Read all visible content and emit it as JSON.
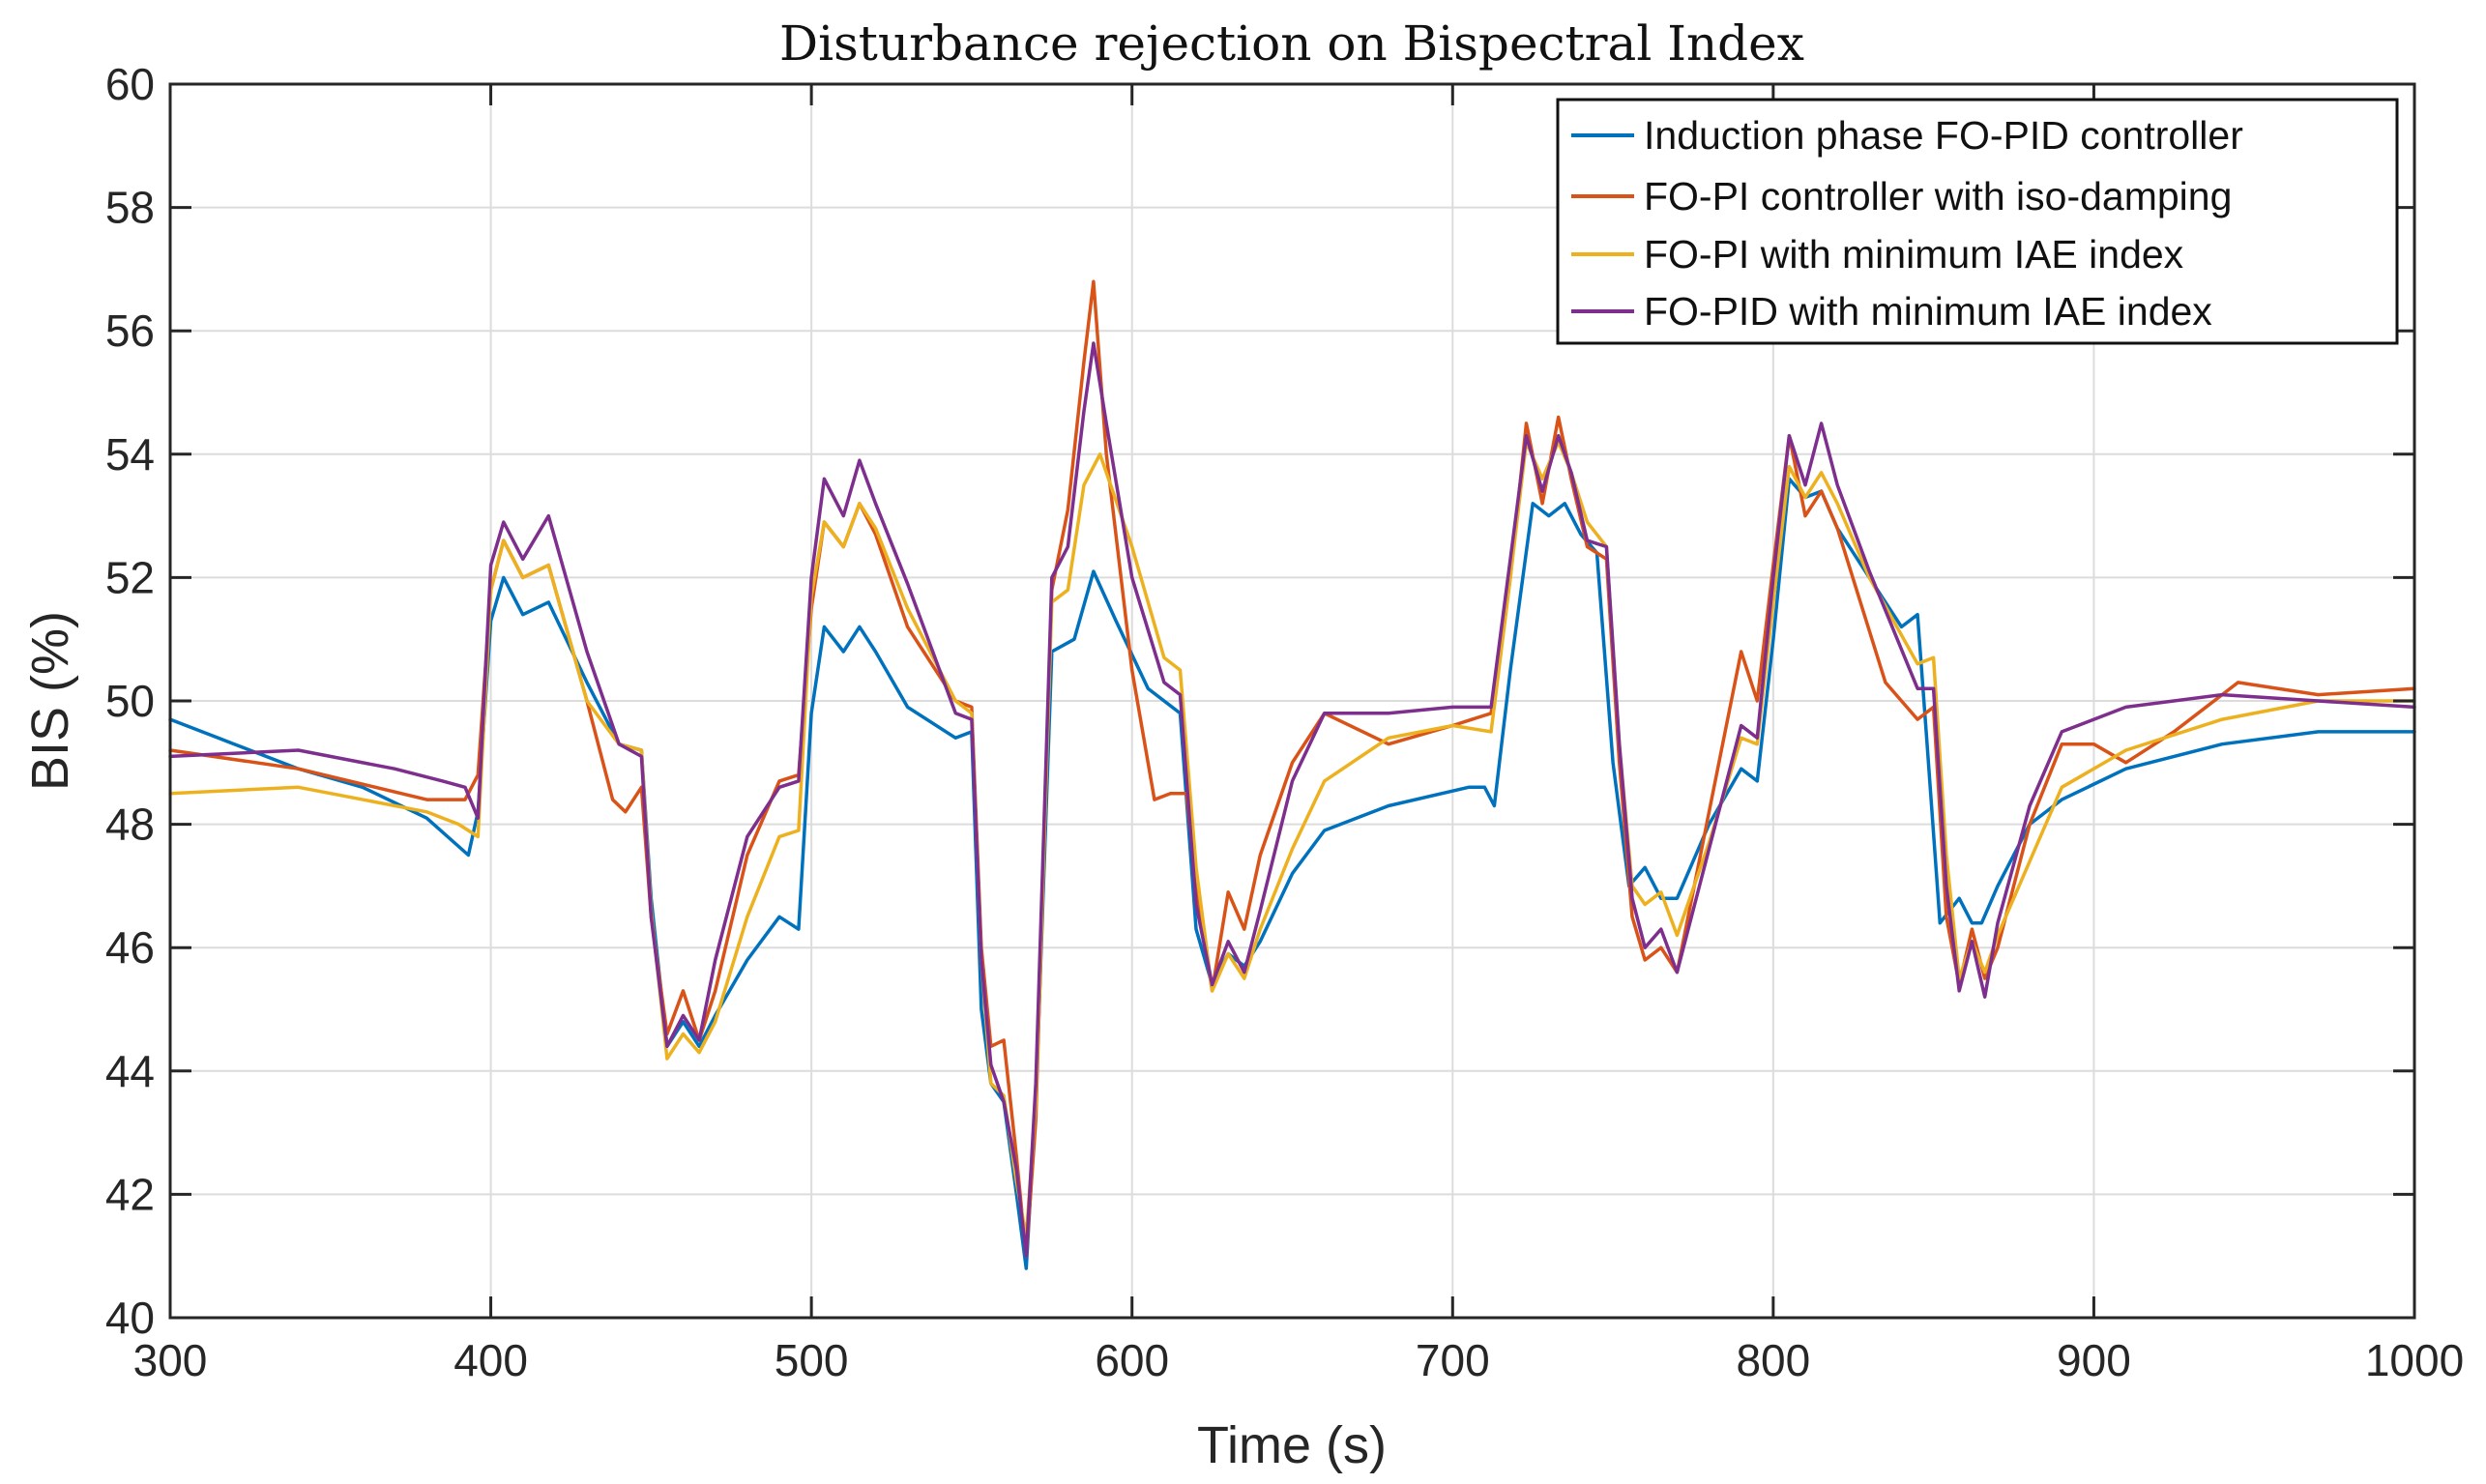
{
  "chart_data": {
    "type": "line",
    "title": "Disturbance rejection on Bispectral Index",
    "xlabel": "Time (s)",
    "ylabel": "BIS (%)",
    "xlim": [
      300,
      1000
    ],
    "ylim": [
      40,
      60
    ],
    "xticks": [
      300,
      400,
      500,
      600,
      700,
      800,
      900,
      1000
    ],
    "yticks": [
      40,
      42,
      44,
      46,
      48,
      50,
      52,
      54,
      56,
      58,
      60
    ],
    "grid": true,
    "legend_position": "top-right",
    "series": [
      {
        "name": "Induction phase FO-PID controller",
        "color": "#0072BD",
        "x": [
          300,
          320,
          340,
          360,
          380,
          393,
          396,
          400,
          404,
          410,
          418,
          430,
          440,
          447,
          450,
          455,
          460,
          465,
          470,
          480,
          490,
          496,
          500,
          504,
          510,
          515,
          520,
          530,
          545,
          550,
          553,
          556,
          560,
          564,
          567,
          570,
          575,
          582,
          588,
          595,
          605,
          615,
          620,
          625,
          630,
          635,
          640,
          650,
          660,
          680,
          705,
          710,
          713,
          718,
          725,
          730,
          735,
          740,
          745,
          750,
          755,
          760,
          765,
          770,
          780,
          790,
          795,
          800,
          805,
          810,
          815,
          820,
          830,
          840,
          845,
          848,
          852,
          858,
          862,
          865,
          870,
          880,
          890,
          910,
          940,
          970,
          1000
        ],
        "y": [
          49.7,
          49.3,
          48.9,
          48.6,
          48.1,
          47.5,
          48.2,
          51.3,
          52.0,
          51.4,
          51.6,
          50.3,
          49.3,
          49.2,
          46.8,
          44.4,
          44.8,
          44.4,
          44.9,
          45.8,
          46.5,
          46.3,
          49.8,
          51.2,
          50.8,
          51.2,
          50.8,
          49.9,
          49.4,
          49.5,
          45.0,
          43.8,
          43.5,
          42.0,
          40.8,
          43.5,
          50.8,
          51.0,
          52.1,
          51.3,
          50.2,
          49.8,
          46.3,
          45.4,
          45.9,
          45.7,
          46.1,
          47.2,
          47.9,
          48.3,
          48.6,
          48.6,
          48.3,
          50.5,
          53.2,
          53.0,
          53.2,
          52.7,
          52.4,
          49.0,
          47.0,
          47.3,
          46.8,
          46.8,
          48.0,
          48.9,
          48.7,
          51.0,
          53.6,
          53.3,
          53.4,
          52.8,
          52.0,
          51.2,
          51.4,
          49.3,
          46.4,
          46.8,
          46.4,
          46.4,
          47.0,
          48.0,
          48.4,
          48.9,
          49.3,
          49.5,
          49.5
        ]
      },
      {
        "name": "FO-PI controller with iso-damping",
        "color": "#D95319",
        "x": [
          300,
          340,
          380,
          392,
          396,
          400,
          404,
          410,
          418,
          430,
          438,
          442,
          447,
          450,
          455,
          460,
          465,
          470,
          480,
          490,
          496,
          500,
          504,
          510,
          515,
          520,
          530,
          545,
          550,
          553,
          556,
          560,
          564,
          567,
          570,
          575,
          580,
          585,
          588,
          592,
          600,
          607,
          612,
          617,
          620,
          625,
          630,
          635,
          640,
          650,
          660,
          680,
          700,
          712,
          718,
          723,
          728,
          733,
          737,
          742,
          748,
          752,
          756,
          760,
          765,
          770,
          780,
          790,
          795,
          800,
          805,
          810,
          815,
          820,
          835,
          845,
          850,
          854,
          858,
          862,
          866,
          870,
          880,
          890,
          900,
          910,
          925,
          945,
          970,
          1000
        ],
        "y": [
          49.2,
          48.9,
          48.4,
          48.4,
          48.8,
          51.8,
          52.6,
          52.0,
          52.2,
          50.0,
          48.4,
          48.2,
          48.6,
          46.5,
          44.6,
          45.3,
          44.5,
          45.3,
          47.5,
          48.7,
          48.8,
          51.5,
          52.9,
          52.5,
          53.2,
          52.7,
          51.2,
          50.0,
          49.9,
          46.0,
          44.4,
          44.5,
          42.6,
          41.0,
          43.2,
          51.8,
          53.1,
          55.5,
          56.8,
          54.0,
          50.5,
          48.4,
          48.5,
          48.5,
          47.0,
          45.3,
          46.9,
          46.3,
          47.5,
          49.0,
          49.8,
          49.3,
          49.6,
          49.8,
          52.0,
          54.5,
          53.2,
          54.6,
          53.6,
          52.5,
          52.3,
          49.0,
          46.5,
          45.8,
          46.0,
          45.6,
          48.2,
          50.8,
          50.0,
          52.2,
          54.3,
          53.0,
          53.4,
          52.8,
          50.3,
          49.7,
          49.9,
          46.5,
          45.4,
          46.3,
          45.5,
          46.0,
          48.0,
          49.3,
          49.3,
          49.0,
          49.5,
          50.3,
          50.1,
          50.2
        ]
      },
      {
        "name": "FO-PI with minimum IAE index",
        "color": "#EDB120",
        "x": [
          300,
          340,
          380,
          390,
          396,
          400,
          404,
          410,
          418,
          430,
          440,
          447,
          450,
          455,
          460,
          465,
          470,
          480,
          490,
          496,
          500,
          504,
          510,
          515,
          520,
          530,
          545,
          550,
          553,
          556,
          560,
          564,
          567,
          570,
          575,
          580,
          585,
          590,
          600,
          610,
          615,
          620,
          625,
          630,
          635,
          640,
          650,
          660,
          680,
          700,
          712,
          718,
          723,
          728,
          733,
          737,
          742,
          748,
          752,
          756,
          760,
          765,
          770,
          780,
          790,
          795,
          800,
          805,
          810,
          815,
          820,
          830,
          845,
          850,
          854,
          858,
          862,
          866,
          870,
          880,
          890,
          910,
          940,
          970,
          1000
        ],
        "y": [
          48.5,
          48.6,
          48.2,
          48.0,
          47.8,
          51.8,
          52.6,
          52.0,
          52.2,
          50.0,
          49.3,
          49.2,
          46.6,
          44.2,
          44.6,
          44.3,
          44.8,
          46.5,
          47.8,
          47.9,
          51.7,
          52.9,
          52.5,
          53.2,
          52.8,
          51.5,
          50.0,
          49.8,
          45.8,
          43.8,
          43.6,
          42.2,
          41.3,
          43.5,
          51.6,
          51.8,
          53.5,
          54.0,
          52.5,
          50.7,
          50.5,
          47.3,
          45.3,
          45.9,
          45.5,
          46.3,
          47.6,
          48.7,
          49.4,
          49.6,
          49.5,
          52.0,
          54.2,
          53.6,
          54.2,
          53.7,
          52.9,
          52.5,
          49.3,
          47.0,
          46.7,
          46.9,
          46.2,
          47.7,
          49.4,
          49.3,
          51.6,
          53.8,
          53.3,
          53.7,
          53.2,
          52.0,
          50.6,
          50.7,
          47.5,
          45.5,
          46.1,
          45.6,
          46.2,
          47.4,
          48.6,
          49.2,
          49.7,
          50.0,
          50.0
        ]
      },
      {
        "name": "FO-PID with minimum IAE index",
        "color": "#7E2F8E",
        "x": [
          300,
          340,
          370,
          385,
          392,
          396,
          400,
          404,
          410,
          418,
          430,
          440,
          447,
          450,
          455,
          460,
          465,
          470,
          480,
          490,
          496,
          500,
          504,
          510,
          515,
          520,
          530,
          545,
          550,
          553,
          556,
          560,
          564,
          567,
          570,
          575,
          580,
          585,
          588,
          592,
          600,
          610,
          615,
          620,
          625,
          630,
          635,
          640,
          650,
          660,
          680,
          700,
          712,
          718,
          723,
          728,
          733,
          737,
          742,
          748,
          752,
          756,
          760,
          765,
          770,
          780,
          790,
          795,
          800,
          805,
          810,
          815,
          820,
          830,
          845,
          850,
          854,
          858,
          862,
          866,
          870,
          880,
          890,
          910,
          940,
          970,
          1000
        ],
        "y": [
          49.1,
          49.2,
          48.9,
          48.7,
          48.6,
          48.1,
          52.2,
          52.9,
          52.3,
          53.0,
          50.8,
          49.3,
          49.1,
          46.5,
          44.4,
          44.9,
          44.5,
          45.8,
          47.8,
          48.6,
          48.7,
          52.0,
          53.6,
          53.0,
          53.9,
          53.2,
          51.9,
          49.8,
          49.7,
          45.8,
          44.1,
          43.5,
          42.4,
          41.0,
          43.8,
          52.0,
          52.5,
          54.7,
          55.8,
          54.5,
          52.0,
          50.3,
          50.1,
          46.7,
          45.4,
          46.1,
          45.6,
          46.6,
          48.7,
          49.8,
          49.8,
          49.9,
          49.9,
          52.3,
          54.3,
          53.4,
          54.3,
          53.7,
          52.6,
          52.5,
          49.3,
          46.8,
          46.0,
          46.3,
          45.6,
          47.6,
          49.6,
          49.4,
          52.0,
          54.3,
          53.5,
          54.5,
          53.5,
          52.1,
          50.2,
          50.2,
          47.0,
          45.3,
          46.1,
          45.2,
          46.4,
          48.3,
          49.5,
          49.9,
          50.1,
          50.0,
          49.9
        ]
      }
    ]
  }
}
